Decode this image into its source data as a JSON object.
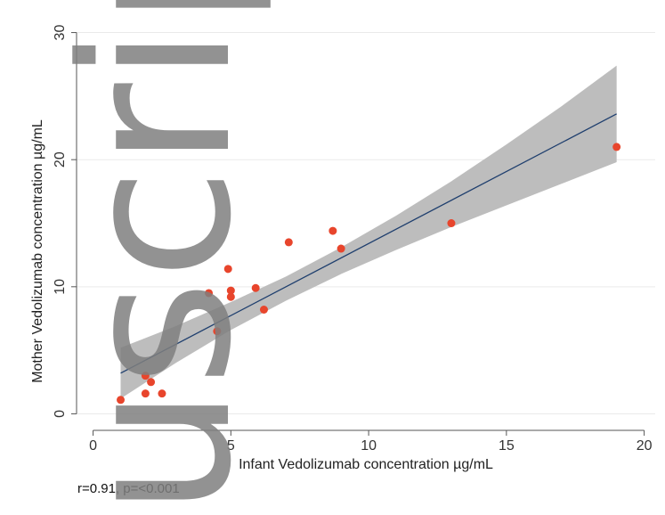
{
  "chart_data": {
    "type": "scatter",
    "xlabel": "Infant Vedolizumab concentration µg/mL",
    "ylabel": "Mother Vedolizumab concentration µg/mL",
    "xlim": [
      -0.6,
      20.4
    ],
    "ylim": [
      -1.3,
      30.6
    ],
    "x_ticks": [
      0,
      5,
      10,
      15,
      20
    ],
    "y_ticks": [
      0,
      10,
      20,
      30
    ],
    "grid": "horizontal",
    "colors": {
      "points": "#e8452c",
      "fit_line": "#1f3f6e",
      "confidence_band": "#bdbdbd",
      "gridline": "#eaeaea",
      "axis": "#555555"
    },
    "points": [
      {
        "x": 1.0,
        "y": 1.1
      },
      {
        "x": 1.9,
        "y": 1.6
      },
      {
        "x": 1.9,
        "y": 3.0
      },
      {
        "x": 2.1,
        "y": 2.5
      },
      {
        "x": 2.5,
        "y": 1.6
      },
      {
        "x": 4.2,
        "y": 9.5
      },
      {
        "x": 4.5,
        "y": 6.5
      },
      {
        "x": 4.9,
        "y": 11.4
      },
      {
        "x": 5.0,
        "y": 9.7
      },
      {
        "x": 5.0,
        "y": 9.2
      },
      {
        "x": 5.9,
        "y": 9.9
      },
      {
        "x": 6.2,
        "y": 8.2
      },
      {
        "x": 7.1,
        "y": 13.5
      },
      {
        "x": 8.7,
        "y": 14.4
      },
      {
        "x": 9.0,
        "y": 13.0
      },
      {
        "x": 13.0,
        "y": 15.0
      },
      {
        "x": 19.0,
        "y": 21.0
      }
    ],
    "fit_line": {
      "x": [
        1.0,
        19.0
      ],
      "y": [
        3.2,
        23.6
      ]
    },
    "confidence_band": [
      {
        "x": 1.0,
        "lo": 1.2,
        "hi": 5.2
      },
      {
        "x": 3.0,
        "lo": 4.0,
        "hi": 6.9
      },
      {
        "x": 5.0,
        "lo": 6.6,
        "hi": 8.8
      },
      {
        "x": 7.0,
        "lo": 8.9,
        "hi": 10.8
      },
      {
        "x": 9.0,
        "lo": 11.0,
        "hi": 13.1
      },
      {
        "x": 11.0,
        "lo": 12.9,
        "hi": 15.6
      },
      {
        "x": 13.0,
        "lo": 14.7,
        "hi": 18.3
      },
      {
        "x": 15.0,
        "lo": 16.4,
        "hi": 21.2
      },
      {
        "x": 17.0,
        "lo": 18.1,
        "hi": 24.2
      },
      {
        "x": 19.0,
        "lo": 19.8,
        "hi": 27.4
      }
    ],
    "annotation": "r=0.91, p=<0.001"
  },
  "watermark": {
    "text": "uscript",
    "color": "#7f7f7f"
  }
}
